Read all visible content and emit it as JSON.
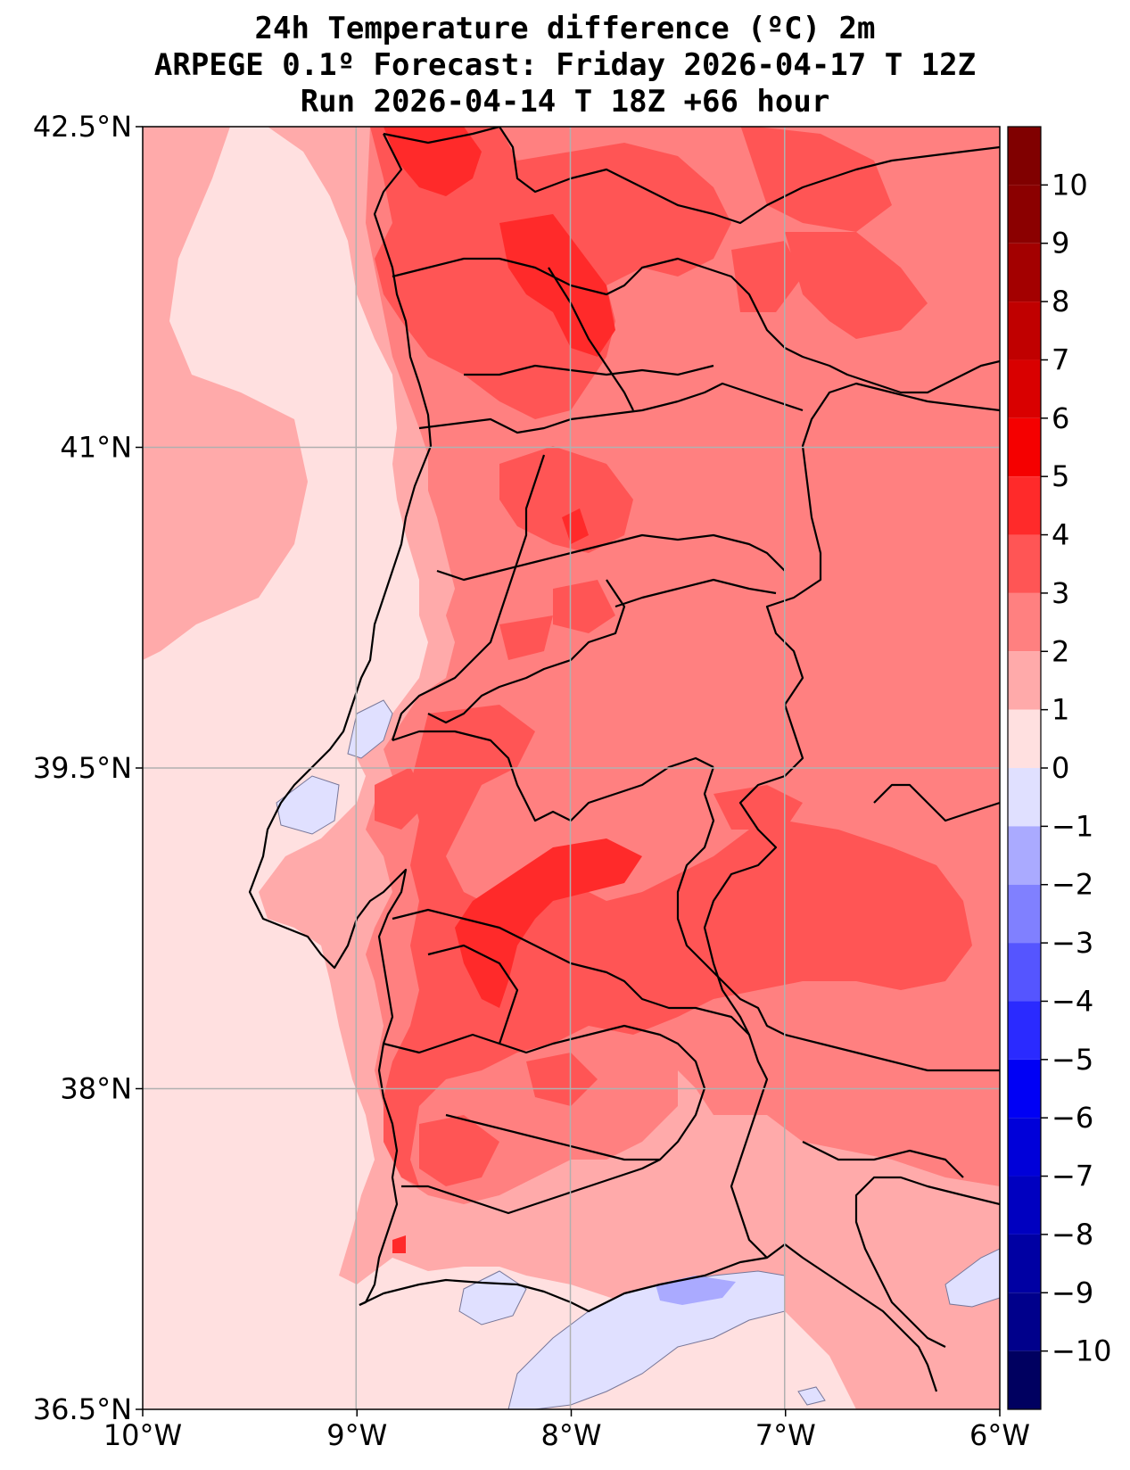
{
  "title": {
    "line1": "24h Temperature difference (ºC) 2m",
    "line2": "ARPEGE 0.1º Forecast: Friday 2026-04-17 T 12Z",
    "line3": "Run 2026-04-14 T 18Z +66 hour"
  },
  "map": {
    "lon_range": [
      -10,
      -6
    ],
    "lat_range": [
      36.5,
      42.5
    ],
    "grid": true,
    "lon_ticks": [
      {
        "value": -10,
        "label": "10°W"
      },
      {
        "value": -9,
        "label": "9°W"
      },
      {
        "value": -8,
        "label": "8°W"
      },
      {
        "value": -7,
        "label": "7°W"
      },
      {
        "value": -6,
        "label": "6°W"
      }
    ],
    "lat_ticks": [
      {
        "value": 42.5,
        "label": "42.5°N"
      },
      {
        "value": 41,
        "label": "41°N"
      },
      {
        "value": 39.5,
        "label": "39.5°N"
      },
      {
        "value": 38,
        "label": "38°N"
      },
      {
        "value": 36.5,
        "label": "36.5°N"
      }
    ]
  },
  "colorbar": {
    "range": [
      -11,
      11
    ],
    "tick_values": [
      10,
      9,
      8,
      7,
      6,
      5,
      4,
      3,
      2,
      1,
      0,
      -1,
      -2,
      -3,
      -4,
      -5,
      -6,
      -7,
      -8,
      -9,
      -10
    ],
    "tick_labels": [
      "10",
      "9",
      "8",
      "7",
      "6",
      "5",
      "4",
      "3",
      "2",
      "1",
      "0",
      "−1",
      "−2",
      "−3",
      "−4",
      "−5",
      "−6",
      "−7",
      "−8",
      "−9",
      "−10"
    ],
    "bands": [
      {
        "from": 10,
        "to": 11,
        "color": "#800000"
      },
      {
        "from": 9,
        "to": 10,
        "color": "#8b0000"
      },
      {
        "from": 8,
        "to": 9,
        "color": "#a30000"
      },
      {
        "from": 7,
        "to": 8,
        "color": "#c00000"
      },
      {
        "from": 6,
        "to": 7,
        "color": "#d90000"
      },
      {
        "from": 5,
        "to": 6,
        "color": "#f50000"
      },
      {
        "from": 4,
        "to": 5,
        "color": "#ff2a2a"
      },
      {
        "from": 3,
        "to": 4,
        "color": "#ff5555"
      },
      {
        "from": 2,
        "to": 3,
        "color": "#ff8080"
      },
      {
        "from": 1,
        "to": 2,
        "color": "#ffaaaa"
      },
      {
        "from": 0,
        "to": 1,
        "color": "#ffe0e0"
      },
      {
        "from": -1,
        "to": 0,
        "color": "#e0e0ff"
      },
      {
        "from": -2,
        "to": -1,
        "color": "#aaaaff"
      },
      {
        "from": -3,
        "to": -2,
        "color": "#8080ff"
      },
      {
        "from": -4,
        "to": -3,
        "color": "#5555ff"
      },
      {
        "from": -5,
        "to": -4,
        "color": "#2a2aff"
      },
      {
        "from": -6,
        "to": -5,
        "color": "#0000f5"
      },
      {
        "from": -7,
        "to": -6,
        "color": "#0000d9"
      },
      {
        "from": -8,
        "to": -7,
        "color": "#0000c0"
      },
      {
        "from": -9,
        "to": -8,
        "color": "#0000a3"
      },
      {
        "from": -10,
        "to": -9,
        "color": "#00008b"
      },
      {
        "from": -11,
        "to": -10,
        "color": "#000060"
      }
    ]
  }
}
